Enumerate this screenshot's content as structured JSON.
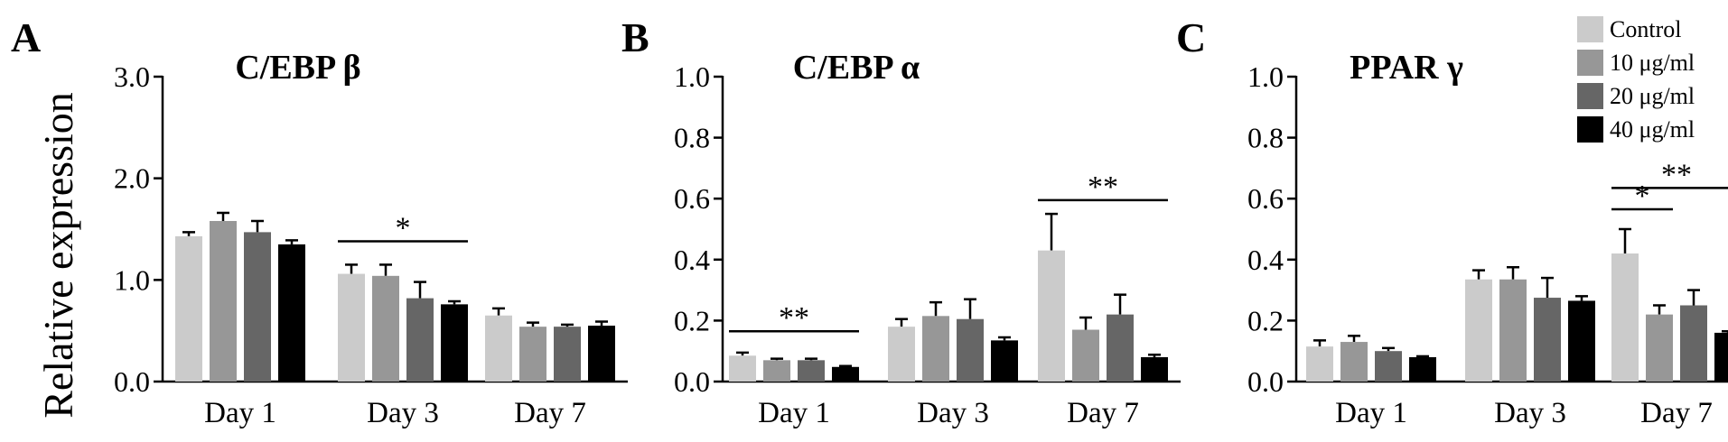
{
  "figure": {
    "ylabel": "Relative expression",
    "legend": [
      {
        "label": "Control",
        "color": "#cbcbcb"
      },
      {
        "label": "10 μg/ml",
        "color": "#979797"
      },
      {
        "label": "20 μg/ml",
        "color": "#666666"
      },
      {
        "label": "40 μg/ml",
        "color": "#000000"
      }
    ]
  },
  "chart_data": [
    {
      "type": "bar",
      "panel": "A",
      "title": "C/EBP β",
      "ylabel": "Relative expression",
      "categories": [
        "Day 1",
        "Day 3",
        "Day 7"
      ],
      "ylim": [
        0,
        3.0
      ],
      "yticks": [
        0.0,
        1.0,
        2.0,
        3.0
      ],
      "ytick_labels": [
        "0.0",
        "1.0",
        "2.0",
        "3.0"
      ],
      "series": [
        {
          "name": "Control",
          "values": [
            1.43,
            1.06,
            0.65
          ],
          "errors": [
            0.04,
            0.09,
            0.07
          ]
        },
        {
          "name": "10 μg/ml",
          "values": [
            1.58,
            1.04,
            0.54
          ],
          "errors": [
            0.08,
            0.11,
            0.04
          ]
        },
        {
          "name": "20 μg/ml",
          "values": [
            1.47,
            0.82,
            0.54
          ],
          "errors": [
            0.11,
            0.16,
            0.02
          ]
        },
        {
          "name": "40 μg/ml",
          "values": [
            1.35,
            0.76,
            0.55
          ],
          "errors": [
            0.04,
            0.03,
            0.04
          ]
        }
      ],
      "significance": [
        {
          "category": "Day 3",
          "from": "Control",
          "to": "40 μg/ml",
          "label": "*",
          "y": 1.38
        }
      ]
    },
    {
      "type": "bar",
      "panel": "B",
      "title": "C/EBP α",
      "categories": [
        "Day 1",
        "Day 3",
        "Day 7"
      ],
      "ylim": [
        0,
        1.0
      ],
      "yticks": [
        0.0,
        0.2,
        0.4,
        0.6,
        0.8,
        1.0
      ],
      "ytick_labels": [
        "0.0",
        "0.2",
        "0.4",
        "0.6",
        "0.8",
        "1.0"
      ],
      "series": [
        {
          "name": "Control",
          "values": [
            0.085,
            0.18,
            0.43
          ],
          "errors": [
            0.01,
            0.025,
            0.12
          ]
        },
        {
          "name": "10 μg/ml",
          "values": [
            0.07,
            0.215,
            0.17
          ],
          "errors": [
            0.005,
            0.045,
            0.04
          ]
        },
        {
          "name": "20 μg/ml",
          "values": [
            0.07,
            0.205,
            0.22
          ],
          "errors": [
            0.005,
            0.065,
            0.065
          ]
        },
        {
          "name": "40 μg/ml",
          "values": [
            0.048,
            0.135,
            0.08
          ],
          "errors": [
            0.003,
            0.01,
            0.008
          ]
        }
      ],
      "significance": [
        {
          "category": "Day 1",
          "from": "Control",
          "to": "40 μg/ml",
          "label": "**",
          "y": 0.165
        },
        {
          "category": "Day 7",
          "from": "Control",
          "to": "40 μg/ml",
          "label": "**",
          "y": 0.595
        }
      ]
    },
    {
      "type": "bar",
      "panel": "C",
      "title": "PPAR γ",
      "categories": [
        "Day 1",
        "Day 3",
        "Day 7"
      ],
      "ylim": [
        0,
        1.0
      ],
      "yticks": [
        0.0,
        0.2,
        0.4,
        0.6,
        0.8,
        1.0
      ],
      "ytick_labels": [
        "0.0",
        "0.2",
        "0.4",
        "0.6",
        "0.8",
        "1.0"
      ],
      "series": [
        {
          "name": "Control",
          "values": [
            0.115,
            0.335,
            0.42
          ],
          "errors": [
            0.02,
            0.03,
            0.08
          ]
        },
        {
          "name": "10 μg/ml",
          "values": [
            0.13,
            0.335,
            0.22
          ],
          "errors": [
            0.02,
            0.04,
            0.03
          ]
        },
        {
          "name": "20 μg/ml",
          "values": [
            0.1,
            0.275,
            0.25
          ],
          "errors": [
            0.01,
            0.065,
            0.05
          ]
        },
        {
          "name": "40 μg/ml",
          "values": [
            0.08,
            0.265,
            0.16
          ],
          "errors": [
            0.003,
            0.015,
            0.005
          ]
        }
      ],
      "significance": [
        {
          "category": "Day 7",
          "from": "Control",
          "to": "10 μg/ml",
          "label": "*",
          "y": 0.565
        },
        {
          "category": "Day 7",
          "from": "Control",
          "to": "40 μg/ml",
          "label": "**",
          "y": 0.635
        }
      ]
    }
  ]
}
